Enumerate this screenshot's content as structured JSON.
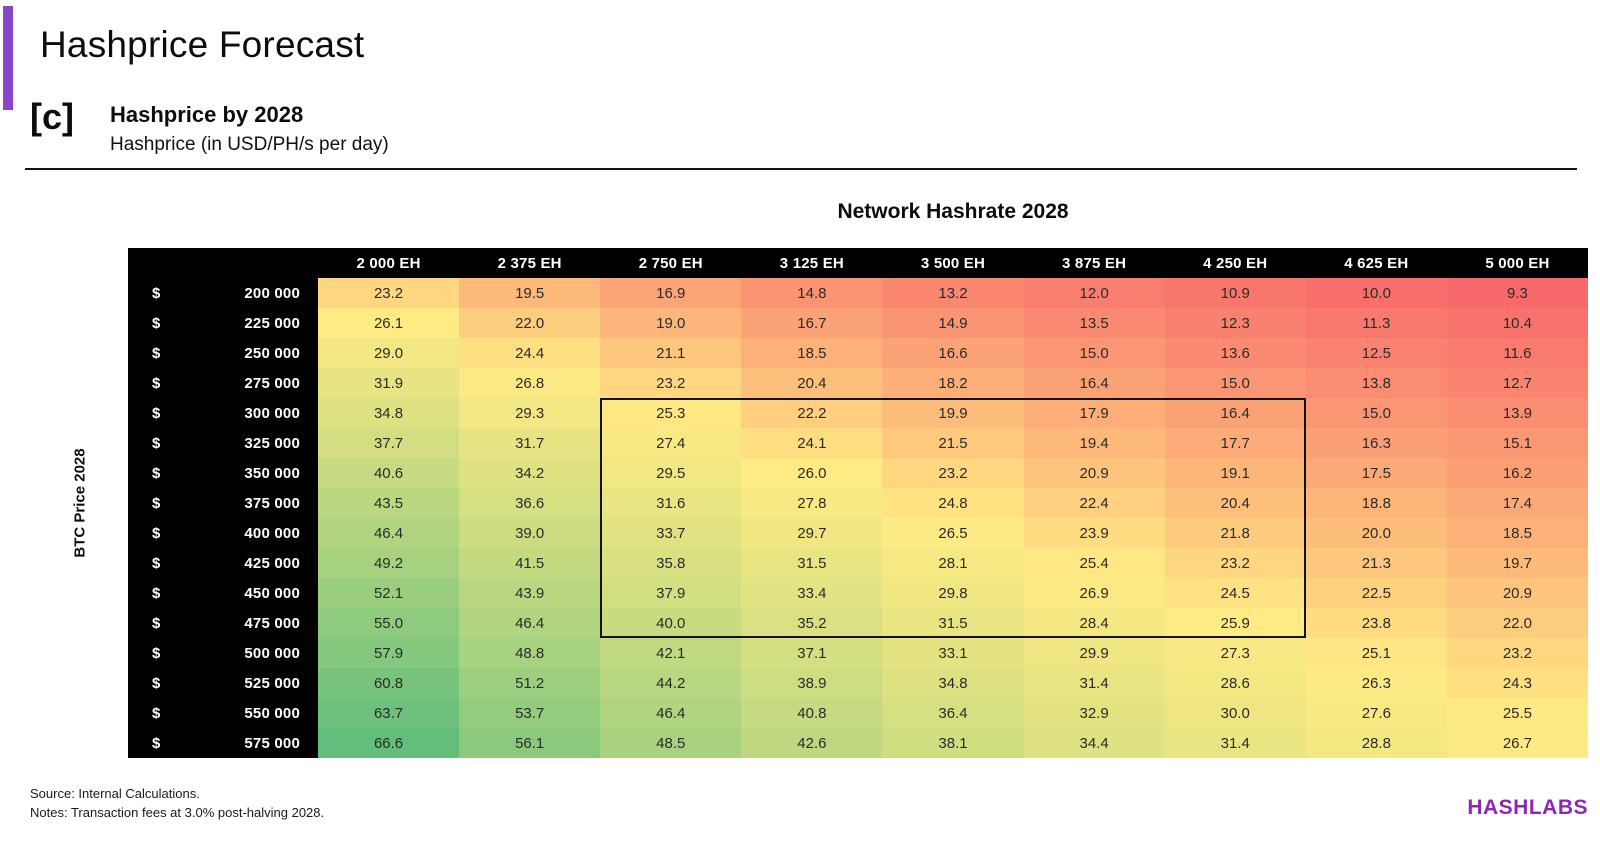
{
  "header": {
    "title": "Hashprice Forecast",
    "section_marker": "[c]",
    "subtitle": "Hashprice by 2028",
    "subtitle_unit": "Hashprice (in USD/PH/s per day)"
  },
  "chart_data": {
    "type": "heatmap",
    "title": "Network Hashrate 2028",
    "x_axis_label": "Network Hashrate 2028",
    "y_axis_label": "BTC Price 2028",
    "row_prefix": "$",
    "columns": [
      "2 000 EH",
      "2 375 EH",
      "2 750 EH",
      "3 125 EH",
      "3 500 EH",
      "3 875 EH",
      "4 250 EH",
      "4 625 EH",
      "5 000 EH"
    ],
    "rows": [
      "200 000",
      "225 000",
      "250 000",
      "275 000",
      "300 000",
      "325 000",
      "350 000",
      "375 000",
      "400 000",
      "425 000",
      "450 000",
      "475 000",
      "500 000",
      "525 000",
      "550 000",
      "575 000"
    ],
    "values": [
      [
        23.2,
        19.5,
        16.9,
        14.8,
        13.2,
        12.0,
        10.9,
        10.0,
        9.3
      ],
      [
        26.1,
        22.0,
        19.0,
        16.7,
        14.9,
        13.5,
        12.3,
        11.3,
        10.4
      ],
      [
        29.0,
        24.4,
        21.1,
        18.5,
        16.6,
        15.0,
        13.6,
        12.5,
        11.6
      ],
      [
        31.9,
        26.8,
        23.2,
        20.4,
        18.2,
        16.4,
        15.0,
        13.8,
        12.7
      ],
      [
        34.8,
        29.3,
        25.3,
        22.2,
        19.9,
        17.9,
        16.4,
        15.0,
        13.9
      ],
      [
        37.7,
        31.7,
        27.4,
        24.1,
        21.5,
        19.4,
        17.7,
        16.3,
        15.1
      ],
      [
        40.6,
        34.2,
        29.5,
        26.0,
        23.2,
        20.9,
        19.1,
        17.5,
        16.2
      ],
      [
        43.5,
        36.6,
        31.6,
        27.8,
        24.8,
        22.4,
        20.4,
        18.8,
        17.4
      ],
      [
        46.4,
        39.0,
        33.7,
        29.7,
        26.5,
        23.9,
        21.8,
        20.0,
        18.5
      ],
      [
        49.2,
        41.5,
        35.8,
        31.5,
        28.1,
        25.4,
        23.2,
        21.3,
        19.7
      ],
      [
        52.1,
        43.9,
        37.9,
        33.4,
        29.8,
        26.9,
        24.5,
        22.5,
        20.9
      ],
      [
        55.0,
        46.4,
        40.0,
        35.2,
        31.5,
        28.4,
        25.9,
        23.8,
        22.0
      ],
      [
        57.9,
        48.8,
        42.1,
        37.1,
        33.1,
        29.9,
        27.3,
        25.1,
        23.2
      ],
      [
        60.8,
        51.2,
        44.2,
        38.9,
        34.8,
        31.4,
        28.6,
        26.3,
        24.3
      ],
      [
        63.7,
        53.7,
        46.4,
        40.8,
        36.4,
        32.9,
        30.0,
        27.6,
        25.5
      ],
      [
        66.6,
        56.1,
        48.5,
        42.6,
        38.1,
        34.4,
        31.4,
        28.8,
        26.7
      ]
    ],
    "value_decimals": 1,
    "color_scale": {
      "min_value": 9.3,
      "mid_value": 25.8,
      "max_value": 66.6,
      "min_color": "#F8696B",
      "mid_color": "#FFEB84",
      "max_color": "#63BE7B"
    },
    "highlight_box": {
      "row_start": 4,
      "row_end": 11,
      "col_start": 2,
      "col_end": 6,
      "row_start_label": "300 000",
      "row_end_label": "475 000",
      "col_start_label": "2 750 EH",
      "col_end_label": "4 250 EH"
    },
    "legend_position": "none",
    "grid": false
  },
  "footer": {
    "source": "Source: Internal Calculations.",
    "notes": "Notes: Transaction fees at 3.0% post-halving 2028.",
    "logo": "HASHLABS"
  },
  "colors": {
    "accent_purple": "#8A46C8",
    "logo_purple": "#8E26B8",
    "header_black": "#000000"
  }
}
